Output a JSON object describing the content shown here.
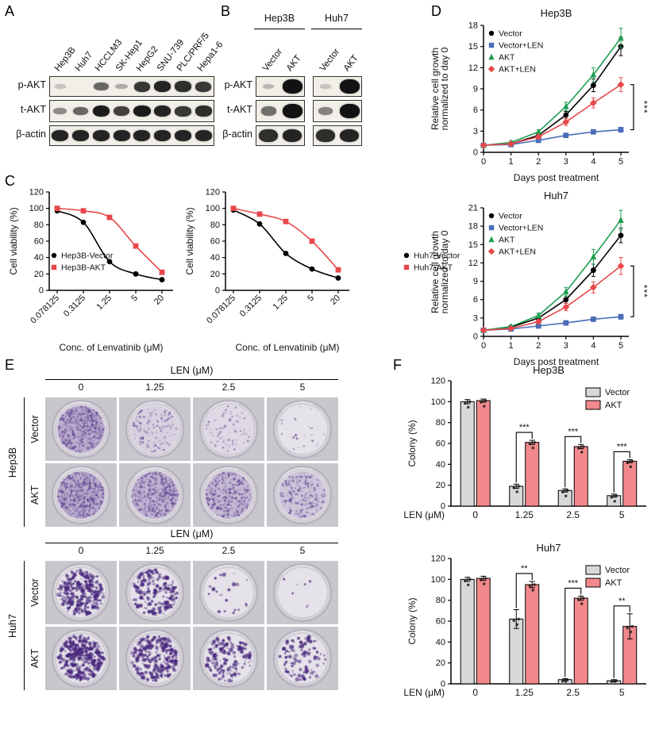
{
  "panels": {
    "A": {
      "label": "A",
      "lanes": [
        "Hep3B",
        "Huh7",
        "HCCLM3",
        "SK-Hep1",
        "HepG2",
        "SNU-739",
        "PLC/PRF/5",
        "Hepa1-6"
      ],
      "rows": [
        {
          "name": "p-AKT",
          "bands": [
            0.06,
            0.03,
            0.55,
            0.18,
            0.8,
            0.9,
            0.85,
            0.8
          ]
        },
        {
          "name": "t-AKT",
          "bands": [
            0.35,
            0.55,
            0.95,
            0.75,
            0.95,
            0.9,
            0.8,
            0.85
          ]
        },
        {
          "name": "β-actin",
          "bands": [
            0.9,
            0.9,
            0.9,
            0.9,
            0.9,
            0.9,
            0.9,
            0.9
          ]
        }
      ]
    },
    "B": {
      "label": "B",
      "groups": [
        {
          "name": "Hep3B",
          "lanes": [
            "Vector",
            "AKT"
          ]
        },
        {
          "name": "Huh7",
          "lanes": [
            "Vector",
            "AKT"
          ]
        }
      ],
      "rows": [
        {
          "name": "p-AKT",
          "bands": [
            0.12,
            1,
            0.05,
            1
          ]
        },
        {
          "name": "t-AKT",
          "bands": [
            0.5,
            1,
            0.4,
            1
          ]
        },
        {
          "name": "β-actin",
          "bands": [
            0.85,
            0.9,
            0.85,
            0.9
          ]
        }
      ]
    },
    "C": {
      "label": "C"
    },
    "D": {
      "label": "D"
    },
    "E": {
      "label": "E",
      "header": "LEN (μM)",
      "doses": [
        "0",
        "1.25",
        "2.5",
        "5"
      ],
      "blocks": [
        {
          "cell_line": "Hep3B",
          "style": "confluent",
          "rows": [
            {
              "label": "Vector",
              "densities": [
                0.95,
                0.3,
                0.15,
                0.06
              ]
            },
            {
              "label": "AKT",
              "densities": [
                0.97,
                0.85,
                0.7,
                0.5
              ]
            }
          ]
        },
        {
          "cell_line": "Huh7",
          "style": "spots",
          "rows": [
            {
              "label": "Vector",
              "densities": [
                0.85,
                0.55,
                0.07,
                0.02
              ]
            },
            {
              "label": "AKT",
              "densities": [
                0.95,
                0.8,
                0.5,
                0.3
              ]
            }
          ]
        }
      ]
    },
    "F": {
      "label": "F"
    }
  },
  "chart_data": [
    {
      "id": "C1",
      "type": "line",
      "title": "",
      "xlabel": "Conc. of Lenvatinib (μM)",
      "ylabel": "Cell viability (%)",
      "xticklabels": [
        "0.078125",
        "0.3125",
        "1.25",
        "5",
        "20"
      ],
      "ylim": [
        0,
        120
      ],
      "yticks": [
        0,
        20,
        40,
        60,
        80,
        100,
        120
      ],
      "smooth": true,
      "legend_position": "bottom-left",
      "series": [
        {
          "name": "Hep3B-Vector",
          "color": "#000000",
          "marker": "circle",
          "values": [
            97,
            83,
            35,
            20,
            13
          ]
        },
        {
          "name": "Hep3B-AKT",
          "color": "#e8474b",
          "marker": "square",
          "values": [
            100,
            97,
            89,
            54,
            22
          ]
        }
      ]
    },
    {
      "id": "C2",
      "type": "line",
      "title": "",
      "xlabel": "Conc. of Lenvatinib (μM)",
      "ylabel": "Cell viability (%)",
      "xticklabels": [
        "0.078125",
        "0.3125",
        "1.25",
        "5",
        "20"
      ],
      "ylim": [
        0,
        120
      ],
      "yticks": [
        0,
        20,
        40,
        60,
        80,
        100,
        120
      ],
      "smooth": true,
      "legend_position": "bottom-left",
      "series": [
        {
          "name": "Huh7-Vector",
          "color": "#000000",
          "marker": "circle",
          "values": [
            98,
            81,
            45,
            26,
            15
          ]
        },
        {
          "name": "Huh7-AKT",
          "color": "#e8474b",
          "marker": "square",
          "values": [
            100,
            93,
            84,
            60,
            25
          ]
        }
      ]
    },
    {
      "id": "D1",
      "type": "line",
      "title": "Hep3B",
      "xlabel": "Days post treatment",
      "ylabel": "Relative cell growth\nnormalized to day 0",
      "x": [
        0,
        1,
        2,
        3,
        4,
        5
      ],
      "ylim": [
        0,
        18
      ],
      "yticks": [
        0,
        3,
        6,
        9,
        12,
        15,
        18
      ],
      "legend_position": "top-left",
      "series": [
        {
          "name": "Vector",
          "color": "#000000",
          "marker": "circle",
          "values": [
            1,
            1.2,
            2.4,
            5.3,
            9.5,
            15
          ],
          "err": [
            0.1,
            0.15,
            0.3,
            0.5,
            0.9,
            1.3
          ]
        },
        {
          "name": "Vector+LEN",
          "color": "#4a6db8",
          "marker": "square",
          "values": [
            1,
            1.1,
            1.7,
            2.4,
            2.9,
            3.2
          ],
          "err": [
            0.1,
            0.1,
            0.2,
            0.25,
            0.3,
            0.35
          ]
        },
        {
          "name": "AKT",
          "color": "#1e9e50",
          "marker": "triangle",
          "values": [
            1,
            1.4,
            2.9,
            6.5,
            11,
            16.2
          ],
          "err": [
            0.1,
            0.2,
            0.3,
            0.6,
            1,
            1.4
          ]
        },
        {
          "name": "AKT+LEN",
          "color": "#e8474b",
          "marker": "diamond",
          "values": [
            1,
            1.2,
            2.2,
            4.3,
            7,
            9.6
          ],
          "err": [
            0.1,
            0.15,
            0.25,
            0.5,
            0.7,
            1
          ]
        }
      ],
      "sig": {
        "label": "***",
        "between": [
          "AKT+LEN",
          "Vector+LEN"
        ]
      }
    },
    {
      "id": "D2",
      "type": "line",
      "title": "Huh7",
      "xlabel": "Days post treatment",
      "ylabel": "Relative cell growth\nnormalized to day 0",
      "x": [
        0,
        1,
        2,
        3,
        4,
        5
      ],
      "ylim": [
        0,
        21
      ],
      "yticks": [
        0,
        3,
        6,
        9,
        12,
        15,
        18,
        21
      ],
      "legend_position": "top-left",
      "series": [
        {
          "name": "Vector",
          "color": "#000000",
          "marker": "circle",
          "values": [
            1,
            1.5,
            3,
            6,
            10.8,
            16.5
          ],
          "err": [
            0.1,
            0.2,
            0.3,
            0.6,
            1,
            1.2
          ]
        },
        {
          "name": "Vector+LEN",
          "color": "#4a6db8",
          "marker": "square",
          "values": [
            1,
            1.2,
            1.7,
            2.2,
            2.8,
            3.2
          ],
          "err": [
            0.1,
            0.1,
            0.2,
            0.25,
            0.3,
            0.4
          ]
        },
        {
          "name": "AKT",
          "color": "#1e9e50",
          "marker": "triangle",
          "values": [
            1,
            1.6,
            3.4,
            7.3,
            13,
            19
          ],
          "err": [
            0.1,
            0.2,
            0.4,
            0.7,
            1.2,
            1.6
          ]
        },
        {
          "name": "AKT+LEN",
          "color": "#e8474b",
          "marker": "diamond",
          "values": [
            1,
            1.3,
            2.4,
            4.8,
            8,
            11.5
          ],
          "err": [
            0.1,
            0.15,
            0.3,
            0.6,
            0.9,
            1.4
          ]
        }
      ],
      "sig": {
        "label": "***",
        "between": [
          "AKT+LEN",
          "Vector+LEN"
        ]
      }
    },
    {
      "id": "F1",
      "type": "bar",
      "title": "Hep3B",
      "xlabel": "LEN (μM)",
      "ylabel": "Colony (%)",
      "categories": [
        "0",
        "1.25",
        "2.5",
        "5"
      ],
      "ylim": [
        0,
        120
      ],
      "yticks": [
        0,
        20,
        40,
        60,
        80,
        100,
        120
      ],
      "legend_position": "top-right",
      "series": [
        {
          "name": "Vector",
          "color": "#d8d8d8",
          "values": [
            100,
            19,
            15,
            10
          ],
          "err": [
            2,
            2,
            1.5,
            1.5
          ]
        },
        {
          "name": "AKT",
          "color": "#f2898c",
          "values": [
            101,
            61,
            57,
            43
          ],
          "err": [
            1.5,
            2,
            2,
            1.5
          ]
        }
      ],
      "sig": [
        "",
        "***",
        "***",
        "***"
      ]
    },
    {
      "id": "F2",
      "type": "bar",
      "title": "Huh7",
      "xlabel": "LEN (μM)",
      "ylabel": "Colony (%)",
      "categories": [
        "0",
        "1.25",
        "2.5",
        "5"
      ],
      "ylim": [
        0,
        120
      ],
      "yticks": [
        0,
        20,
        40,
        60,
        80,
        100,
        120
      ],
      "legend_position": "top-right",
      "series": [
        {
          "name": "Vector",
          "color": "#d8d8d8",
          "values": [
            100,
            62,
            4,
            3
          ],
          "err": [
            2,
            9,
            1,
            1
          ]
        },
        {
          "name": "AKT",
          "color": "#f2898c",
          "values": [
            101,
            95,
            82,
            55
          ],
          "err": [
            2,
            3,
            2,
            12
          ]
        }
      ],
      "sig": [
        "",
        "**",
        "***",
        "**"
      ]
    }
  ]
}
